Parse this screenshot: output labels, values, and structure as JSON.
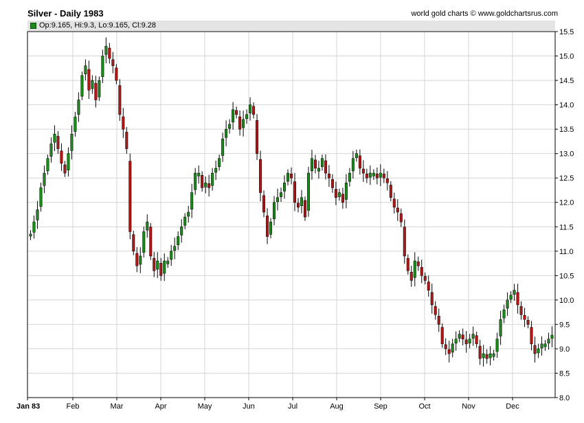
{
  "chart_data": {
    "type": "candlestick",
    "title": "Silver - Daily 1983",
    "credit": "world gold charts © www.goldchartsrus.com",
    "ohlc_legend": "Op:9.165, Hi:9.3, Lo:9.165, Cl:9.28",
    "xlabel": "",
    "ylabel": "",
    "ylim": [
      8.0,
      15.5
    ],
    "y_ticks": [
      "15.5",
      "15.0",
      "14.5",
      "14.0",
      "13.5",
      "13.0",
      "12.5",
      "12.0",
      "11.5",
      "11.0",
      "10.5",
      "10.0",
      "9.5",
      "9.0",
      "8.5",
      "8.0"
    ],
    "x_ticks": [
      "Jan 83",
      "Feb",
      "Mar",
      "Apr",
      "May",
      "Jun",
      "Jul",
      "Aug",
      "Sep",
      "Oct",
      "Nov",
      "Dec"
    ],
    "grid": true,
    "colors": {
      "up": "#1b8a1b",
      "down": "#b01818",
      "grid": "#d4d4d4",
      "axis": "#000000"
    },
    "close_series": [
      11.35,
      11.6,
      11.85,
      12.3,
      12.6,
      12.9,
      13.2,
      13.4,
      13.1,
      12.8,
      12.6,
      13.0,
      13.4,
      13.75,
      14.1,
      14.6,
      14.8,
      14.3,
      14.5,
      14.1,
      14.5,
      15.0,
      15.2,
      14.95,
      14.8,
      14.5,
      13.8,
      13.5,
      13.1,
      11.4,
      11.0,
      10.7,
      10.9,
      11.4,
      11.6,
      10.9,
      10.6,
      10.8,
      10.5,
      10.8,
      10.8,
      11.0,
      11.1,
      11.3,
      11.5,
      11.7,
      11.8,
      12.2,
      12.6,
      12.6,
      12.3,
      12.4,
      12.3,
      12.6,
      12.7,
      12.9,
      13.3,
      13.5,
      13.6,
      13.9,
      13.8,
      13.5,
      13.7,
      13.8,
      14.0,
      13.8,
      13.0,
      12.2,
      11.8,
      11.3,
      11.6,
      12.0,
      12.1,
      12.2,
      12.4,
      12.6,
      12.5,
      12.0,
      11.9,
      12.1,
      11.7,
      12.6,
      12.9,
      12.7,
      12.7,
      12.9,
      12.6,
      12.5,
      12.3,
      12.1,
      12.2,
      12.0,
      12.4,
      12.6,
      12.9,
      13.0,
      12.7,
      12.6,
      12.5,
      12.6,
      12.6,
      12.5,
      12.6,
      12.5,
      12.4,
      12.1,
      11.9,
      11.8,
      11.6,
      10.9,
      10.6,
      10.4,
      10.8,
      10.7,
      10.5,
      10.4,
      10.2,
      9.9,
      9.7,
      9.5,
      9.1,
      9.0,
      8.9,
      9.1,
      9.2,
      9.3,
      9.2,
      9.1,
      9.2,
      9.3,
      9.1,
      8.8,
      8.9,
      8.8,
      8.9,
      8.9,
      9.2,
      9.6,
      9.8,
      10.0,
      10.1,
      10.2,
      9.9,
      9.7,
      9.6,
      9.5,
      9.1,
      8.9,
      9.0,
      9.1,
      9.1,
      9.2,
      9.28
    ]
  }
}
